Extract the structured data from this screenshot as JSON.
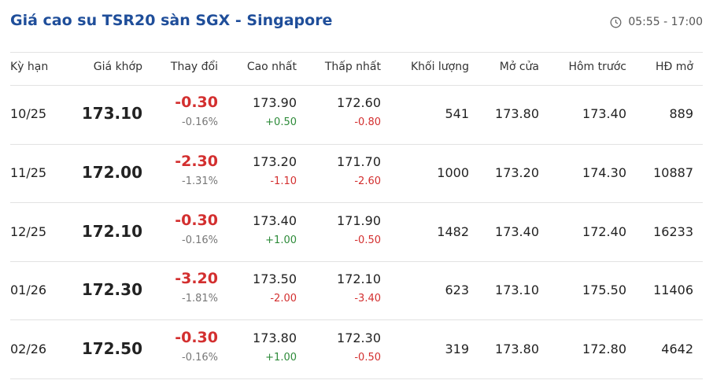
{
  "header": {
    "title": "Giá cao su TSR20 sàn SGX - Singapore",
    "time": "05:55 - 17:00"
  },
  "table": {
    "columns": [
      "Kỳ hạn",
      "Giá khớp",
      "Thay đổi",
      "Cao nhất",
      "Thấp nhất",
      "Khối lượng",
      "Mở cửa",
      "Hôm trước",
      "HĐ mở"
    ],
    "rows": [
      {
        "term": "10/25",
        "price": "173.10",
        "change": "-0.30",
        "change_pct": "-0.16%",
        "high": "173.90",
        "high_diff": "+0.50",
        "low": "172.60",
        "low_diff": "-0.80",
        "volume": "541",
        "open": "173.80",
        "prev": "173.40",
        "oi": "889"
      },
      {
        "term": "11/25",
        "price": "172.00",
        "change": "-2.30",
        "change_pct": "-1.31%",
        "high": "173.20",
        "high_diff": "-1.10",
        "low": "171.70",
        "low_diff": "-2.60",
        "volume": "1000",
        "open": "173.20",
        "prev": "174.30",
        "oi": "10887"
      },
      {
        "term": "12/25",
        "price": "172.10",
        "change": "-0.30",
        "change_pct": "-0.16%",
        "high": "173.40",
        "high_diff": "+1.00",
        "low": "171.90",
        "low_diff": "-0.50",
        "volume": "1482",
        "open": "173.40",
        "prev": "172.40",
        "oi": "16233"
      },
      {
        "term": "01/26",
        "price": "172.30",
        "change": "-3.20",
        "change_pct": "-1.81%",
        "high": "173.50",
        "high_diff": "-2.00",
        "low": "172.10",
        "low_diff": "-3.40",
        "volume": "623",
        "open": "173.10",
        "prev": "175.50",
        "oi": "11406"
      },
      {
        "term": "02/26",
        "price": "172.50",
        "change": "-0.30",
        "change_pct": "-0.16%",
        "high": "173.80",
        "high_diff": "+1.00",
        "low": "172.30",
        "low_diff": "-0.50",
        "volume": "319",
        "open": "173.80",
        "prev": "172.80",
        "oi": "4642"
      }
    ]
  }
}
